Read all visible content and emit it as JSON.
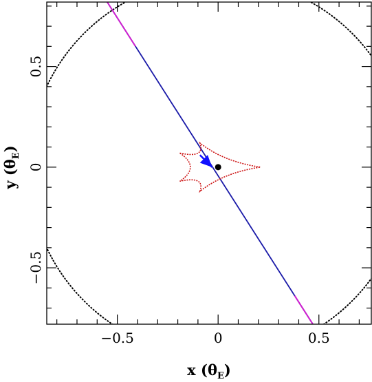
{
  "chart_data": {
    "type": "line",
    "xlabel": "x (θ",
    "ylabel": "y (θ",
    "label_subscript": "E",
    "label_close": ")",
    "xlim": [
      -0.85,
      0.76
    ],
    "ylim": [
      -0.78,
      0.82
    ],
    "x_ticks": [
      {
        "value": -0.5,
        "label": "−0.5"
      },
      {
        "value": 0,
        "label": "0"
      },
      {
        "value": 0.5,
        "label": "0.5"
      }
    ],
    "y_ticks": [
      {
        "value": -0.5,
        "label": "−0.5"
      },
      {
        "value": 0,
        "label": "0"
      },
      {
        "value": 0.5,
        "label": "0.5"
      }
    ],
    "minor_tick_step": 0.1,
    "source_trajectory": {
      "start": [
        -0.55,
        0.82
      ],
      "end": [
        0.47,
        -0.78
      ],
      "color": "#1a1aa8",
      "highlight_color": "#d020d0",
      "highlight_segments": [
        [
          -0.55,
          -0.41
        ],
        [
          0.38,
          0.47
        ]
      ]
    },
    "caustic": {
      "color": "#cc1111",
      "cusps": [
        [
          -0.19,
          0.07
        ],
        [
          0.21,
          0.0
        ],
        [
          -0.19,
          -0.07
        ],
        [
          -0.09,
          0.12
        ],
        [
          -0.09,
          -0.12
        ]
      ]
    },
    "critical_curve": {
      "color": "#000000",
      "style": "dotted",
      "radius": 0.94
    },
    "lens_position": [
      0.0,
      0.0
    ],
    "direction_arrow": {
      "from": [
        -0.09,
        0.06
      ],
      "to": [
        -0.03,
        0.0
      ],
      "color": "#1010ff"
    }
  }
}
